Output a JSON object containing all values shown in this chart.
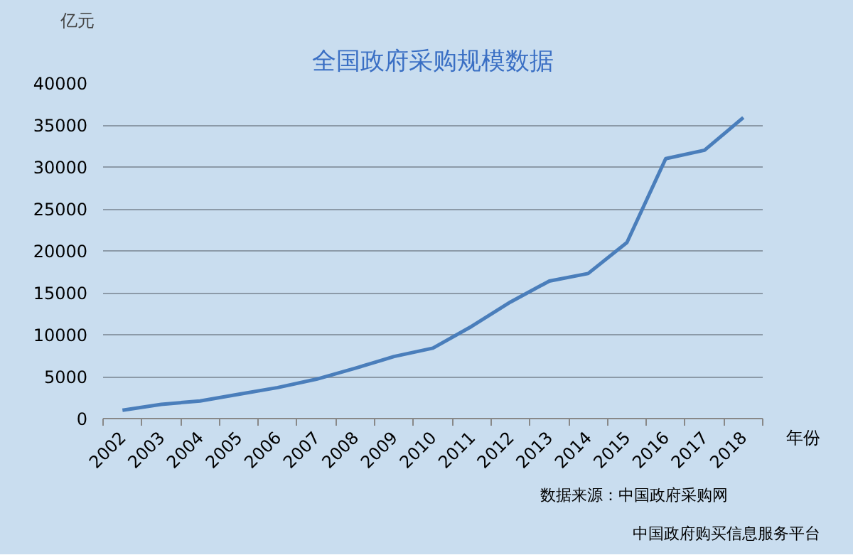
{
  "chart_data": {
    "type": "line",
    "title": "全国政府采购规模数据",
    "ylabel": "亿元",
    "xlabel": "年份",
    "categories": [
      "2002",
      "2003",
      "2004",
      "2005",
      "2006",
      "2007",
      "2008",
      "2009",
      "2010",
      "2011",
      "2012",
      "2013",
      "2014",
      "2015",
      "2016",
      "2017",
      "2018"
    ],
    "series": [
      {
        "color": "#4a7ebb",
        "values": [
          1000,
          1700,
          2100,
          2900,
          3700,
          4700,
          6000,
          7400,
          8400,
          11000,
          13900,
          16400,
          17300,
          21000,
          31000,
          32000,
          35900
        ]
      }
    ],
    "ylim": [
      0,
      40000
    ],
    "yticks": [
      0,
      5000,
      10000,
      15000,
      20000,
      25000,
      30000,
      35000,
      40000
    ],
    "grid": "y",
    "marker": "none",
    "line_style": "solid",
    "annotations": [
      "数据来源：中国政府采购网",
      "中国政府购买信息服务平台"
    ]
  }
}
